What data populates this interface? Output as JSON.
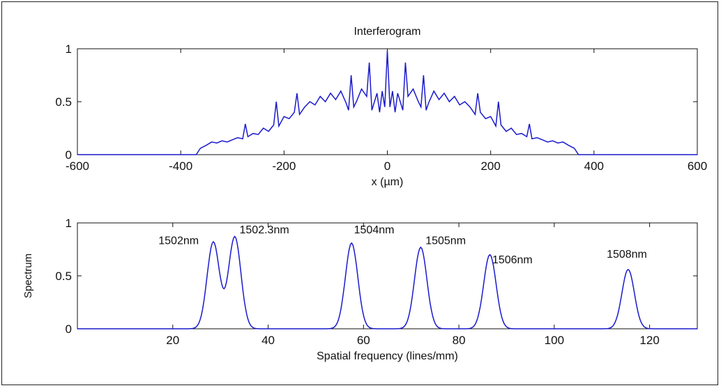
{
  "chart_data": [
    {
      "type": "line",
      "title": "Interferogram",
      "xlabel": "x (µm)",
      "ylabel": "",
      "xlim": [
        -600,
        600
      ],
      "ylim": [
        0,
        1
      ],
      "xticks": [
        "-600",
        "-400",
        "-200",
        "0",
        "200",
        "400",
        "600"
      ],
      "yticks": [
        "0",
        "0.5",
        "1"
      ],
      "grid": false,
      "series": [
        {
          "color": "#1a1acc",
          "x": [
            -600,
            -370,
            -362,
            -350,
            -340,
            -330,
            -320,
            -310,
            -300,
            -290,
            -280,
            -275,
            -270,
            -260,
            -250,
            -240,
            -230,
            -220,
            -215,
            -210,
            -200,
            -190,
            -180,
            -175,
            -170,
            -160,
            -150,
            -140,
            -130,
            -120,
            -110,
            -100,
            -90,
            -80,
            -75,
            -70,
            -65,
            -60,
            -50,
            -40,
            -35,
            -30,
            -25,
            -20,
            -15,
            -10,
            -5,
            0,
            5,
            10,
            15,
            20,
            25,
            30,
            35,
            40,
            50,
            60,
            65,
            70,
            75,
            80,
            90,
            100,
            110,
            120,
            130,
            140,
            150,
            160,
            170,
            175,
            180,
            190,
            200,
            210,
            215,
            220,
            230,
            240,
            250,
            260,
            270,
            275,
            280,
            290,
            300,
            310,
            320,
            330,
            340,
            350,
            362,
            370,
            600
          ],
          "y": [
            0,
            0,
            0.06,
            0.09,
            0.12,
            0.11,
            0.13,
            0.12,
            0.14,
            0.16,
            0.15,
            0.29,
            0.17,
            0.2,
            0.19,
            0.25,
            0.22,
            0.28,
            0.5,
            0.27,
            0.36,
            0.34,
            0.4,
            0.58,
            0.38,
            0.45,
            0.5,
            0.47,
            0.55,
            0.5,
            0.58,
            0.52,
            0.6,
            0.49,
            0.42,
            0.75,
            0.45,
            0.5,
            0.62,
            0.55,
            0.87,
            0.42,
            0.5,
            0.58,
            0.4,
            0.6,
            0.45,
            0.98,
            0.45,
            0.6,
            0.4,
            0.58,
            0.5,
            0.42,
            0.87,
            0.55,
            0.62,
            0.5,
            0.45,
            0.75,
            0.42,
            0.49,
            0.6,
            0.52,
            0.58,
            0.5,
            0.55,
            0.47,
            0.5,
            0.45,
            0.38,
            0.58,
            0.4,
            0.34,
            0.36,
            0.27,
            0.5,
            0.28,
            0.22,
            0.25,
            0.19,
            0.2,
            0.17,
            0.29,
            0.15,
            0.16,
            0.14,
            0.12,
            0.13,
            0.11,
            0.12,
            0.09,
            0.06,
            0,
            0
          ]
        }
      ]
    },
    {
      "type": "line",
      "title": "",
      "xlabel": "Spatial frequency (lines/mm)",
      "ylabel": "Spectrum",
      "xlim": [
        0,
        130
      ],
      "ylim": [
        0,
        1
      ],
      "xticks": [
        "20",
        "40",
        "60",
        "80",
        "100",
        "120"
      ],
      "yticks": [
        "0",
        "0.5",
        "1"
      ],
      "grid": false,
      "series": [
        {
          "color": "#1a1acc",
          "peaks": [
            {
              "x": 28.5,
              "y": 0.82
            },
            {
              "x": 33.0,
              "y": 0.87
            },
            {
              "x": 57.5,
              "y": 0.81
            },
            {
              "x": 72.0,
              "y": 0.77
            },
            {
              "x": 86.5,
              "y": 0.7
            },
            {
              "x": 115.5,
              "y": 0.56
            }
          ]
        }
      ],
      "annotations": [
        {
          "text": "1502nm",
          "x": 17,
          "y": 0.8
        },
        {
          "text": "1502.3nm",
          "x": 34,
          "y": 0.9
        },
        {
          "text": "1504nm",
          "x": 58,
          "y": 0.9
        },
        {
          "text": "1505nm",
          "x": 73,
          "y": 0.8
        },
        {
          "text": "1506nm",
          "x": 87,
          "y": 0.62
        },
        {
          "text": "1508nm",
          "x": 111,
          "y": 0.67
        }
      ]
    }
  ]
}
